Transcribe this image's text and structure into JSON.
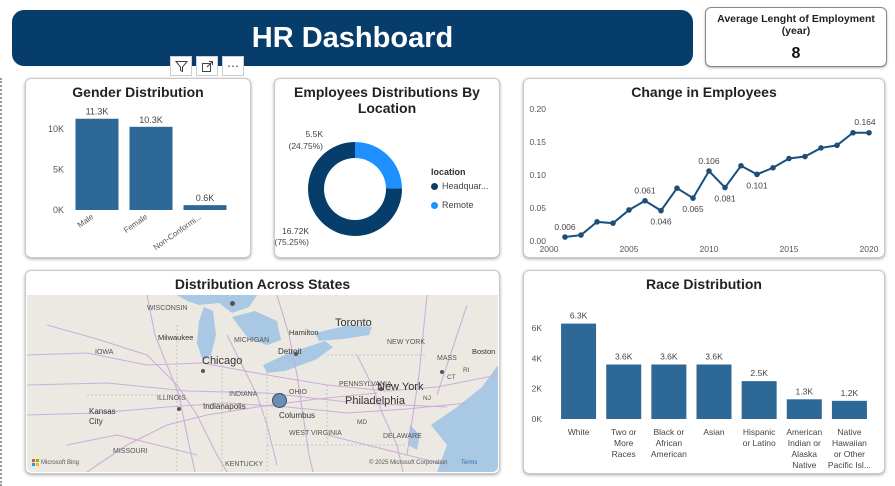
{
  "header": {
    "title": "HR Dashboard"
  },
  "kpi": {
    "label": "Average Lenght of Employment (year)",
    "value": "8"
  },
  "toolbar": {
    "icons": [
      "filter-icon",
      "focus-mode-icon",
      "more-options-icon"
    ],
    "more_label": "⋯"
  },
  "gender": {
    "title": "Gender Distribution",
    "chart_data": {
      "type": "bar",
      "categories": [
        "Male",
        "Female",
        "Non-Conformi..."
      ],
      "values": [
        11.3,
        10.3,
        0.6
      ],
      "data_labels": [
        "11.3K",
        "10.3K",
        "0.6K"
      ],
      "y_ticks": [
        "0K",
        "5K",
        "10K"
      ],
      "ylim": [
        0,
        13
      ]
    }
  },
  "location": {
    "title": "Employees Distributions By Location",
    "legend_title": "location",
    "chart_data": {
      "type": "pie",
      "slices": [
        {
          "name": "Headquar...",
          "value": 16.72,
          "label": "16.72K",
          "pct": "(75.25%)",
          "color": "#063d6b"
        },
        {
          "name": "Remote",
          "value": 5.5,
          "label": "5.5K",
          "pct": "(24.75%)",
          "color": "#1e90ff"
        }
      ]
    }
  },
  "change": {
    "title": "Change in Employees",
    "chart_data": {
      "type": "line",
      "x": [
        2001,
        2002,
        2003,
        2004,
        2005,
        2006,
        2007,
        2008,
        2009,
        2010,
        2011,
        2012,
        2013,
        2014,
        2015,
        2016,
        2017,
        2018,
        2019,
        2020
      ],
      "y": [
        0.006,
        0.009,
        0.029,
        0.027,
        0.047,
        0.061,
        0.046,
        0.08,
        0.065,
        0.106,
        0.081,
        0.114,
        0.101,
        0.111,
        0.125,
        0.128,
        0.141,
        0.145,
        0.164,
        0.164
      ],
      "point_labels": {
        "2001": "0.006",
        "2006": "0.061",
        "2007": "0.046",
        "2009": "0.065",
        "2010": "0.106",
        "2011": "0.081",
        "2013": "0.101",
        "2020": "0.164"
      },
      "x_ticks": [
        "2000",
        "2005",
        "2010",
        "2015",
        "2020"
      ],
      "y_ticks": [
        "0.00",
        "0.05",
        "0.10",
        "0.15",
        "0.20"
      ],
      "xlim": [
        2000,
        2020.5
      ],
      "ylim": [
        0,
        0.2
      ]
    }
  },
  "states": {
    "title": "Distribution Across States",
    "map_labels": {
      "wisconsin": "WISCONSIN",
      "milwaukee": "Milwaukee",
      "michigan": "MICHIGAN",
      "toronto": "Toronto",
      "hamilton": "Hamilton",
      "iowa": "IOWA",
      "chicago": "Chicago",
      "detroit": "Detroit",
      "ny": "NEW YORK",
      "mass": "MASS",
      "boston": "Boston",
      "illinois": "ILLINOIS",
      "indiana": "INDIANA",
      "ohio": "OHIO",
      "penn": "PENNSYLVANIA",
      "newyork": "New York",
      "kansas": "Kansas City",
      "indianapolis": "Indianapolis",
      "columbus": "Columbus",
      "philadelphia": "Philadelphia",
      "wv": "WEST VIRGINIA",
      "missouri": "MISSOURI",
      "delaware": "DELAWARE",
      "kentucky": "KENTUCKY",
      "ri": "RI",
      "ct": "CT",
      "nj": "NJ",
      "md": "MD"
    },
    "attribution": "© 2025 Microsoft Corporation",
    "terms": "Terms",
    "bing": "Microsoft Bing"
  },
  "race": {
    "title": "Race Distribution",
    "chart_data": {
      "type": "bar",
      "categories": [
        [
          "White"
        ],
        [
          "Two or",
          "More",
          "Races"
        ],
        [
          "Black or",
          "African",
          "American"
        ],
        [
          "Asian"
        ],
        [
          "Hispanic",
          "or Latino"
        ],
        [
          "American",
          "Indian or",
          "Alaska",
          "Native"
        ],
        [
          "Native",
          "Hawaiian",
          "or Other",
          "Pacific Isl..."
        ]
      ],
      "values": [
        6.3,
        3.6,
        3.6,
        3.6,
        2.5,
        1.3,
        1.2
      ],
      "data_labels": [
        "6.3K",
        "3.6K",
        "3.6K",
        "3.6K",
        "2.5K",
        "1.3K",
        "1.2K"
      ],
      "y_ticks": [
        "0K",
        "2K",
        "4K",
        "6K"
      ],
      "ylim": [
        0,
        7
      ]
    }
  },
  "colors": {
    "primary": "#063d6b",
    "bar": "#2d6896",
    "accent": "#1e90ff",
    "line": "#1b4f7a"
  }
}
